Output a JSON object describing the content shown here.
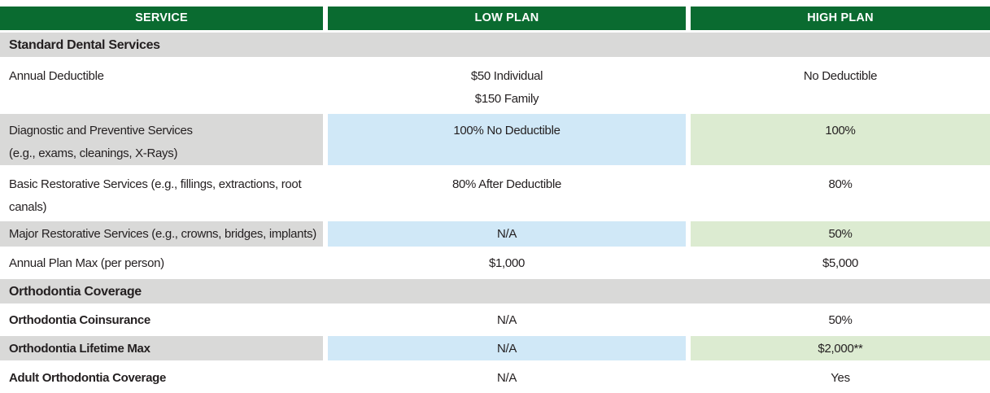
{
  "theme": {
    "header_green": "#0a6b30",
    "band_gray": "#d9d9d8",
    "cell_blue": "#d0e8f7",
    "cell_green": "#dcebd1",
    "text_color": "#231f20",
    "header_text": "#ffffff",
    "background": "#ffffff"
  },
  "table": {
    "columns": {
      "service": "SERVICE",
      "low": "LOW PLAN",
      "high": "HIGH PLAN"
    },
    "sections": [
      {
        "title": "Standard Dental Services",
        "rows": [
          {
            "service": "Annual Deductible",
            "low_lines": [
              "$50 Individual",
              "$150 Family"
            ],
            "high": "No Deductible"
          },
          {
            "service_lines": [
              "Diagnostic and Preventive Services",
              "(e.g., exams, cleanings, X-Rays)"
            ],
            "low": "100% No Deductible",
            "high": "100%"
          },
          {
            "service_lines": [
              "Basic Restorative Services (e.g., fillings, extractions, root",
              "canals)"
            ],
            "low": "80% After Deductible",
            "high": "80%"
          },
          {
            "service": "Major Restorative Services (e.g., crowns, bridges, implants)",
            "low": "N/A",
            "high": "50%"
          },
          {
            "service": "Annual Plan Max (per person)",
            "low": "$1,000",
            "high": "$5,000"
          }
        ]
      },
      {
        "title": "Orthodontia Coverage",
        "rows": [
          {
            "service": "Orthodontia Coinsurance",
            "low": "N/A",
            "high": "50%"
          },
          {
            "service": "Orthodontia Lifetime Max",
            "low": "N/A",
            "high": "$2,000**"
          },
          {
            "service": "Adult Orthodontia Coverage",
            "low": "N/A",
            "high": "Yes"
          }
        ]
      }
    ]
  }
}
